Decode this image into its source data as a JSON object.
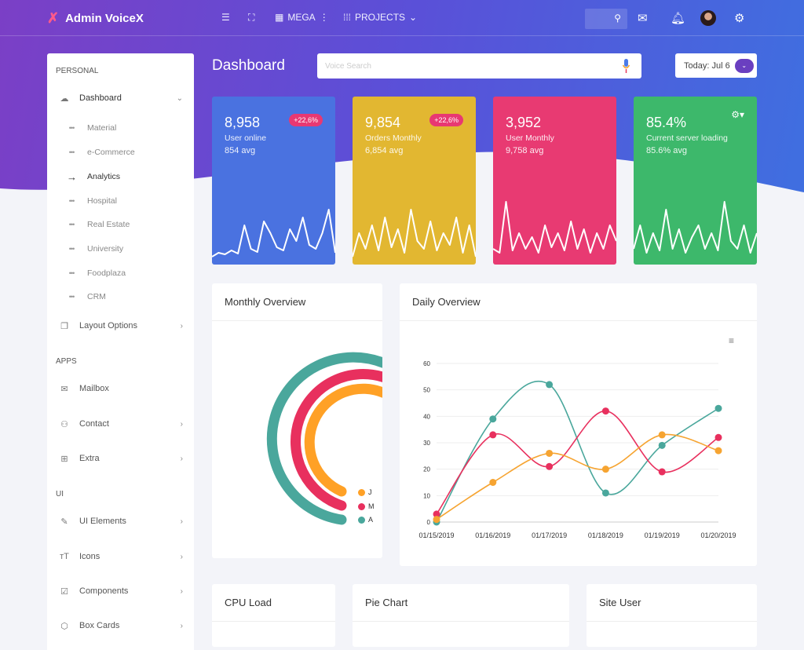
{
  "app": {
    "title": "Admin VoiceX"
  },
  "topbar": {
    "mega": "MEGA",
    "projects": "PROJECTS"
  },
  "header": {
    "title": "Dashboard",
    "search_placeholder": "Voice Search",
    "today": "Today: Jul 6"
  },
  "sidebar": {
    "sections": [
      "PERSONAL",
      "APPS",
      "UI"
    ],
    "dashboard": "Dashboard",
    "sub": [
      "Material",
      "e-Commerce",
      "Analytics",
      "Hospital",
      "Real Estate",
      "University",
      "Foodplaza",
      "CRM"
    ],
    "items": [
      "Layout Options",
      "Mailbox",
      "Contact",
      "Extra",
      "UI Elements",
      "Icons",
      "Components",
      "Box Cards"
    ]
  },
  "stats": [
    {
      "value": "8,958",
      "label": "User online",
      "avg": "854 avg",
      "badge": "+22,6%",
      "color": "#4a72e0"
    },
    {
      "value": "9,854",
      "label": "Orders Monthly",
      "avg": "6,854 avg",
      "badge": "+22,6%",
      "color": "#e2b731"
    },
    {
      "value": "3,952",
      "label": "User Monthly",
      "avg": "9,758 avg",
      "color": "#e83a72"
    },
    {
      "value": "85.4%",
      "label": "Current server loading",
      "avg": "85.6% avg",
      "color": "#3db86b"
    }
  ],
  "cards": {
    "monthly": "Monthly Overview",
    "daily": "Daily Overview",
    "cpu": "CPU Load",
    "pie": "Pie Chart",
    "site": "Site User"
  },
  "radial": {
    "legend": [
      {
        "label": "J",
        "color": "#ffa126"
      },
      {
        "label": "M",
        "color": "#e8305e"
      },
      {
        "label": "A",
        "color": "#4aa79c"
      }
    ]
  },
  "chart_data": {
    "type": "line",
    "categories": [
      "01/15/2019",
      "01/16/2019",
      "01/17/2019",
      "01/18/2019",
      "01/19/2019",
      "01/20/2019"
    ],
    "ylim": [
      0,
      60
    ],
    "yticks": [
      "0",
      "10",
      "20",
      "30",
      "40",
      "50",
      "60"
    ],
    "grid": true,
    "series": [
      {
        "color": "#4aa79c",
        "values": [
          0,
          39,
          52,
          11,
          29,
          43
        ]
      },
      {
        "color": "#e8305e",
        "values": [
          3,
          33,
          21,
          42,
          19,
          32
        ]
      },
      {
        "color": "#f6a431",
        "values": [
          1,
          15,
          26,
          20,
          33,
          27
        ]
      }
    ]
  }
}
